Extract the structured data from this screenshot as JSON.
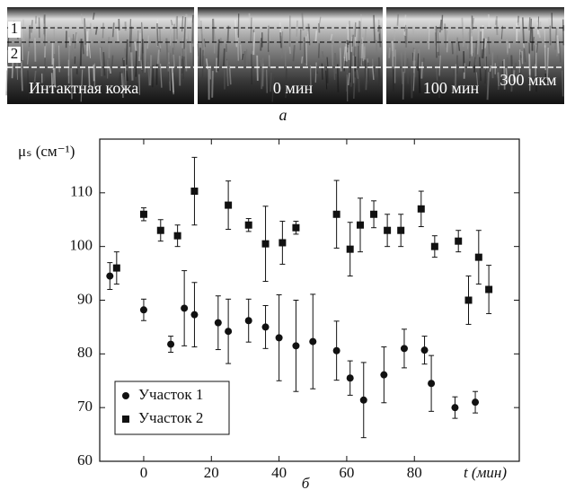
{
  "panel_a": {
    "images": [
      {
        "label": "Интактная кожа"
      },
      {
        "label": "0 мин"
      },
      {
        "label": "100 мин"
      }
    ],
    "scale_label": "300 мкм",
    "layer_labels": [
      "1",
      "2"
    ],
    "caption": "а"
  },
  "chart_data": {
    "type": "scatter",
    "caption": "б",
    "y_label": "μₛ (см⁻¹)",
    "x_label": "t (мин)",
    "xlim": [
      -13,
      111
    ],
    "ylim": [
      60,
      120
    ],
    "xticks": [
      0,
      20,
      40,
      60,
      80
    ],
    "yticks": [
      60,
      70,
      80,
      90,
      100,
      110
    ],
    "legend": "lower left",
    "series": [
      {
        "name": "Участок 1",
        "marker": "circle",
        "color": "#111111",
        "x": [
          -10,
          0,
          8,
          12,
          15,
          22,
          25,
          31,
          36,
          40,
          45,
          50,
          57,
          61,
          65,
          71,
          77,
          83,
          85,
          92,
          98
        ],
        "values": [
          94.5,
          88.2,
          81.8,
          88.5,
          87.3,
          85.8,
          84.2,
          86.2,
          85,
          83,
          81.5,
          82.3,
          80.6,
          75.5,
          71.4,
          76.1,
          81,
          80.7,
          74.5,
          70,
          71
        ],
        "errors": [
          2.5,
          2,
          1.5,
          7,
          6,
          5,
          6,
          4,
          4,
          8,
          8.5,
          8.8,
          5.5,
          3.2,
          7,
          5.2,
          3.6,
          2.6,
          5.2,
          2,
          2
        ]
      },
      {
        "name": "Участок 2",
        "marker": "square",
        "color": "#111111",
        "x": [
          -8,
          0,
          5,
          10,
          15,
          25,
          31,
          36,
          41,
          45,
          57,
          61,
          64,
          68,
          72,
          76,
          82,
          86,
          93,
          96,
          99,
          102
        ],
        "values": [
          96,
          106,
          103,
          102,
          110.3,
          107.7,
          104,
          100.5,
          100.7,
          103.5,
          106,
          99.5,
          104,
          106,
          103,
          103,
          107,
          100,
          101,
          90,
          98,
          92
        ],
        "errors": [
          3,
          1.2,
          2,
          2,
          6.3,
          4.5,
          1.2,
          7,
          4,
          1.2,
          6.3,
          5,
          5,
          2.5,
          3,
          3,
          3.3,
          2,
          2,
          4.5,
          5,
          4.5
        ]
      }
    ]
  }
}
